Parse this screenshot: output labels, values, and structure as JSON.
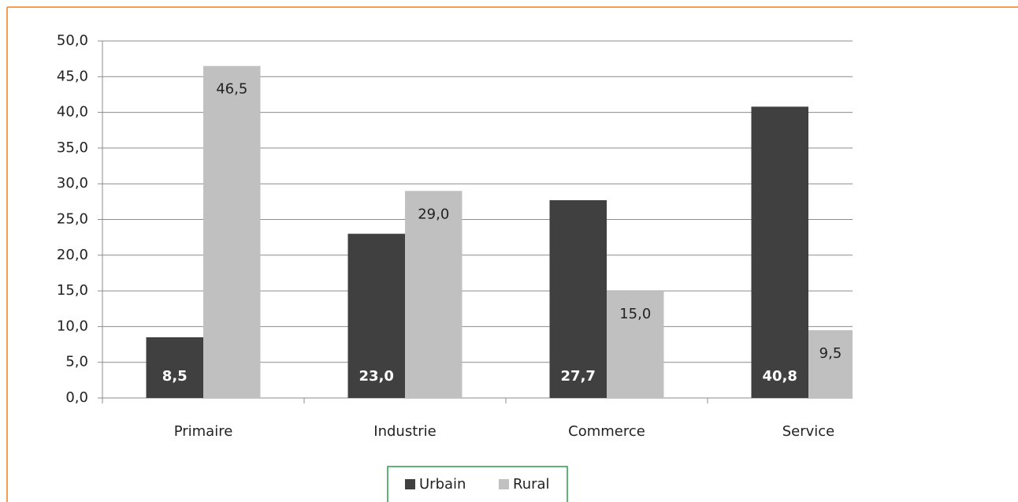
{
  "chart_data": {
    "type": "bar",
    "categories": [
      "Primaire",
      "Industrie",
      "Commerce",
      "Service"
    ],
    "series": [
      {
        "name": "Urbain",
        "color": "#404040",
        "values": [
          8.5,
          23.0,
          27.7,
          40.8
        ],
        "value_labels": [
          "8,5",
          "23,0",
          "27,7",
          "40,8"
        ]
      },
      {
        "name": "Rural",
        "color": "#c0c0c0",
        "values": [
          46.5,
          29.0,
          15.0,
          9.5
        ],
        "value_labels": [
          "46,5",
          "29,0",
          "15,0",
          "9,5"
        ]
      }
    ],
    "ylim": [
      0,
      50
    ],
    "yticks": [
      {
        "value": 0,
        "label": "0,0"
      },
      {
        "value": 5,
        "label": "5,0"
      },
      {
        "value": 10,
        "label": "10,0"
      },
      {
        "value": 15,
        "label": "15,0"
      },
      {
        "value": 20,
        "label": "20,0"
      },
      {
        "value": 25,
        "label": "25,0"
      },
      {
        "value": 30,
        "label": "30,0"
      },
      {
        "value": 35,
        "label": "35,0"
      },
      {
        "value": 40,
        "label": "40,0"
      },
      {
        "value": 45,
        "label": "45,0"
      },
      {
        "value": 50,
        "label": "50,0"
      }
    ],
    "grid": true,
    "legend": "bottom"
  }
}
